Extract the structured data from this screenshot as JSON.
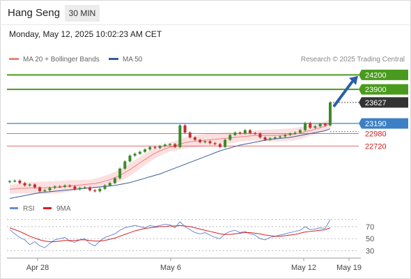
{
  "header": {
    "instrument": "Hang Seng",
    "timeframe": "30 MIN",
    "datetime": "Monday, May 12, 2025 10:02:23 AM CET"
  },
  "legend": {
    "ma20": "MA 20 + Bollinger Bands",
    "ma50": "MA 50",
    "credit": "Research © 2025 Trading Central"
  },
  "colors": {
    "green_level": "#4a9a1e",
    "blue_level": "#3d7fc4",
    "red_level": "#e06a6a",
    "ma20": "#f08080",
    "ma50": "#3a5a9a",
    "band_fill": "#fbdada",
    "candle_up": "#3a8a2a",
    "candle_down": "#c03030",
    "rsi": "#6a8ad8",
    "rsi_ma": "#d42020",
    "current_label": "#333333",
    "arrow": "#2a5ea8"
  },
  "chart_data": {
    "type": "line",
    "title": "Hang Seng",
    "timeframe": "30 MIN",
    "x_labels": [
      "Apr 28",
      "May 6",
      "May 12",
      "May 19"
    ],
    "levels": {
      "resistance": [
        24200,
        23900
      ],
      "current": 23627,
      "pivot": 23190,
      "support": [
        22980,
        22720
      ]
    },
    "level_labels": {
      "r2": "24200",
      "r1": "23900",
      "current": "23627",
      "pivot": "23190",
      "s1": "22980",
      "s2": "22720"
    },
    "ylim": [
      21550,
      24380
    ],
    "series": [
      {
        "name": "Hang Seng",
        "values": [
          21990,
          22000,
          21950,
          21900,
          21920,
          21860,
          21780,
          21800,
          21850,
          21880,
          21870,
          21900,
          21880,
          21820,
          21850,
          21860,
          21800,
          21780,
          21830,
          21900,
          21950,
          22050,
          22250,
          22400,
          22520,
          22560,
          22600,
          22650,
          22700,
          22680,
          22720,
          22750,
          22760,
          22700,
          23150,
          23000,
          22900,
          22850,
          22800,
          22820,
          22780,
          22760,
          22700,
          22850,
          22950,
          23000,
          22980,
          23050,
          22990,
          22980,
          22900,
          22850,
          22880,
          22900,
          22920,
          22950,
          22980,
          23000,
          23050,
          23200,
          23100,
          23130,
          23180,
          23150,
          23627
        ]
      },
      {
        "name": "MA 20",
        "values": [
          21820,
          21830,
          21840,
          21840,
          21850,
          21850,
          21850,
          21850,
          21860,
          21860,
          21870,
          21880,
          21890,
          21900,
          21910,
          21920,
          21930,
          21940,
          21960,
          21990,
          22020,
          22060,
          22110,
          22170,
          22230,
          22300,
          22370,
          22440,
          22510,
          22570,
          22620,
          22660,
          22700,
          22720,
          22760,
          22790,
          22810,
          22820,
          22830,
          22840,
          22850,
          22860,
          22870,
          22880,
          22890,
          22900,
          22910,
          22920,
          22930,
          22940,
          22940,
          22940,
          22940,
          22940,
          22945,
          22950,
          22960,
          22970,
          22990,
          23020,
          23040,
          23070,
          23100,
          23130,
          23200
        ]
      },
      {
        "name": "MA 50",
        "values": [
          21630,
          21650,
          21670,
          21690,
          21710,
          21730,
          21750,
          21760,
          21770,
          21780,
          21790,
          21800,
          21810,
          21820,
          21830,
          21840,
          21850,
          21860,
          21870,
          21880,
          21890,
          21900,
          21920,
          21940,
          21960,
          21990,
          22020,
          22050,
          22080,
          22110,
          22140,
          22180,
          22220,
          22260,
          22300,
          22340,
          22380,
          22420,
          22460,
          22500,
          22540,
          22580,
          22620,
          22650,
          22680,
          22710,
          22740,
          22760,
          22780,
          22800,
          22820,
          22840,
          22860,
          22870,
          22880,
          22890,
          22900,
          22920,
          22940,
          22960,
          22980,
          23000,
          23020,
          23040,
          23080
        ]
      }
    ],
    "rsi": {
      "name": "RSI",
      "ma_name": "9MA",
      "ylim": [
        20,
        85
      ],
      "ticks": [
        70,
        50,
        30
      ],
      "values": [
        65,
        58,
        52,
        48,
        40,
        45,
        38,
        35,
        42,
        48,
        50,
        52,
        46,
        44,
        48,
        50,
        42,
        38,
        46,
        52,
        55,
        58,
        64,
        68,
        70,
        72,
        70,
        68,
        72,
        70,
        72,
        74,
        73,
        68,
        78,
        70,
        65,
        60,
        58,
        60,
        56,
        52,
        50,
        58,
        62,
        64,
        60,
        62,
        58,
        56,
        50,
        48,
        52,
        54,
        56,
        58,
        60,
        62,
        64,
        70,
        65,
        66,
        68,
        67,
        82
      ],
      "ma_values": [
        68,
        65,
        62,
        58,
        54,
        51,
        48,
        46,
        45,
        45,
        46,
        47,
        47,
        47,
        48,
        48,
        47,
        46,
        46,
        47,
        49,
        51,
        54,
        57,
        60,
        63,
        65,
        67,
        68,
        69,
        70,
        70,
        71,
        71,
        72,
        71,
        70,
        68,
        66,
        64,
        62,
        60,
        58,
        57,
        57,
        58,
        59,
        60,
        60,
        59,
        58,
        56,
        55,
        54,
        54,
        55,
        56,
        57,
        59,
        61,
        62,
        63,
        64,
        65,
        68
      ]
    }
  }
}
